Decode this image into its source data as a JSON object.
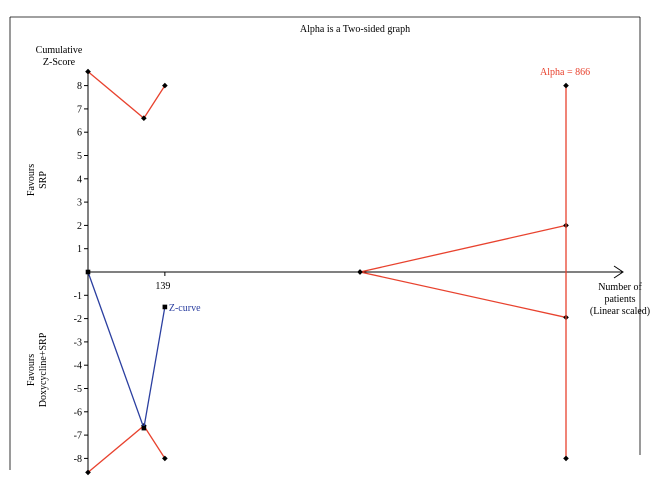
{
  "chart_data": {
    "type": "line",
    "title": "Alpha is a Two-sided graph",
    "y_axis_title_lines": [
      "Cumulative",
      "Z-Score"
    ],
    "x_axis_title_lines": [
      "Number of",
      "patients",
      "(Linear scaled)"
    ],
    "favours_top_lines": [
      "Favours",
      "SRP"
    ],
    "favours_bottom_lines": [
      "Favours",
      "Doxycycline+SRP"
    ],
    "x_tick_label": "139",
    "x_tick_value": 139,
    "ylim": [
      -8.5,
      8.5
    ],
    "y_ticks": [
      "8",
      "7",
      "6",
      "5",
      "4",
      "3",
      "2",
      "1",
      "-1",
      "-2",
      "-3",
      "-4",
      "-5",
      "-6",
      "-7",
      "-8"
    ],
    "z_curve": {
      "name": "Z-curve",
      "color": "#2b3fa0",
      "x": [
        0,
        101,
        139
      ],
      "y": [
        0,
        -6.7,
        -1.5
      ]
    },
    "monitoring_boundaries": {
      "color": "#e8422e",
      "upper": {
        "x": [
          0,
          101,
          139
        ],
        "y": [
          8.6,
          6.6,
          8.0
        ]
      },
      "lower": {
        "x": [
          0,
          101,
          139
        ],
        "y": [
          -8.6,
          -6.6,
          -8.0
        ]
      }
    },
    "alpha_spending": {
      "color": "#e8422e",
      "upper": {
        "x": [
          516,
          866
        ],
        "y": [
          0,
          2.0
        ]
      },
      "lower": {
        "x": [
          516,
          866
        ],
        "y": [
          0,
          -1.95
        ]
      }
    },
    "required_information_size": {
      "label": "Alpha = 866",
      "x": 866,
      "y_range": [
        -8,
        8
      ]
    },
    "colors": {
      "boundary": "#e8422e",
      "zcurve": "#2b3fa0",
      "axis": "#000000"
    }
  }
}
